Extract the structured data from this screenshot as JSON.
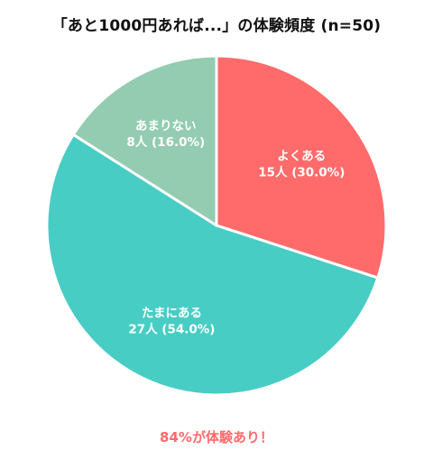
{
  "chart_data": {
    "type": "pie",
    "title": "「あと1000円あれば...」の体験頻度 (n=50)",
    "slices": [
      {
        "name": "よくある",
        "count_label": "15人",
        "value": 15,
        "percent": 30.0,
        "color": "#FF6B6B"
      },
      {
        "name": "たまにある",
        "count_label": "27人",
        "value": 27,
        "percent": 54.0,
        "color": "#48CDC4"
      },
      {
        "name": "あまりない",
        "count_label": "8人",
        "value": 8,
        "percent": 16.0,
        "color": "#93CCB1"
      }
    ],
    "legend": false
  },
  "footnote": {
    "text": "84%が体験あり！",
    "color": "#FF6B6B"
  }
}
